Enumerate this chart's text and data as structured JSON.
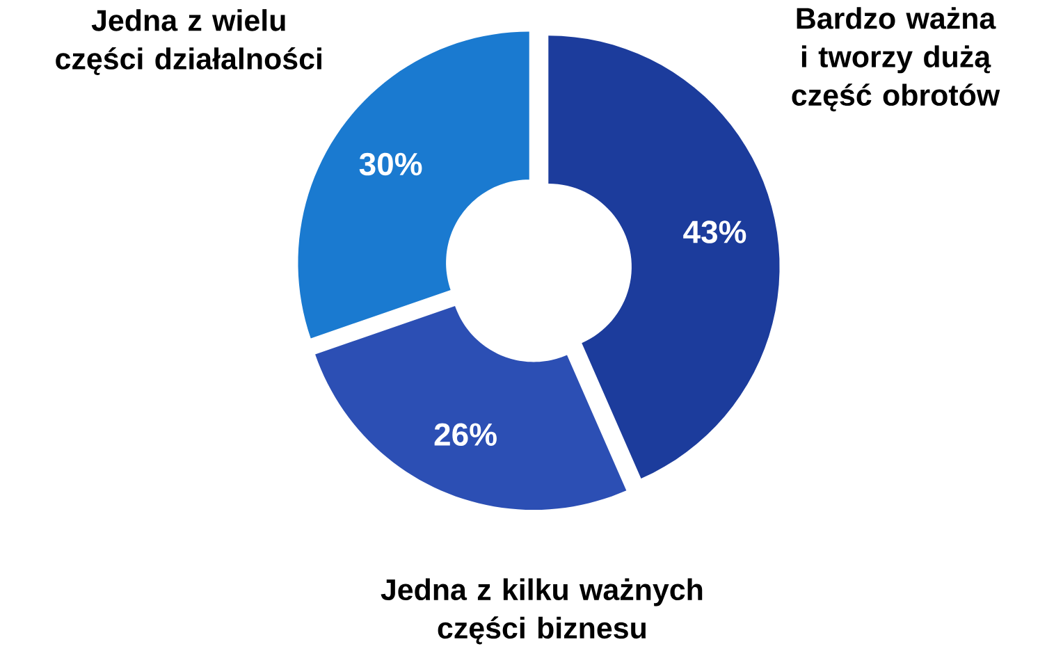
{
  "chart_data": {
    "type": "donut",
    "categories": [
      "Bardzo ważna i tworzy dużą część obrotów",
      "Jedna z kilku ważnych części biznesu",
      "Jedna z wielu części działalności"
    ],
    "values": [
      43,
      26,
      30
    ],
    "value_labels": [
      "43%",
      "26%",
      "30%"
    ],
    "colors": [
      "#1c3c9c",
      "#2c4fb4",
      "#1a7ad0"
    ]
  }
}
